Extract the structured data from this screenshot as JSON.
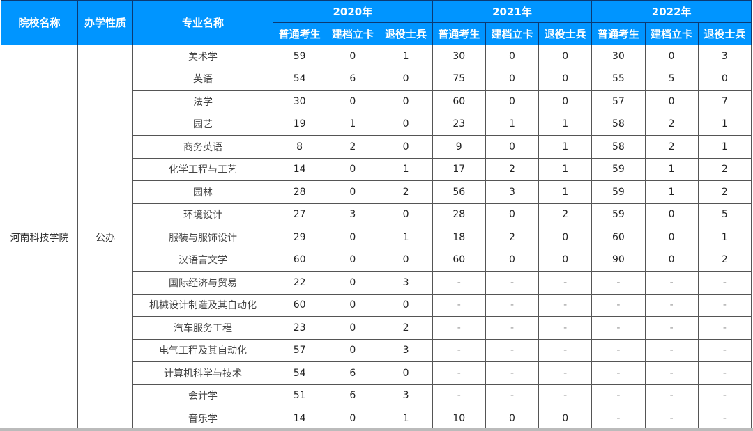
{
  "header": {
    "school": "院校名称",
    "type": "办学性质",
    "major": "专业名称",
    "years": [
      "2020年",
      "2021年",
      "2022年"
    ],
    "sub": [
      "普通考生",
      "建档立卡",
      "退役士兵"
    ]
  },
  "school": "河南科技学院",
  "type": "公办",
  "rows": [
    {
      "major": "美术学",
      "v": [
        "59",
        "0",
        "1",
        "30",
        "0",
        "0",
        "30",
        "0",
        "3"
      ]
    },
    {
      "major": "英语",
      "v": [
        "54",
        "6",
        "0",
        "75",
        "0",
        "0",
        "55",
        "5",
        "0"
      ]
    },
    {
      "major": "法学",
      "v": [
        "30",
        "0",
        "0",
        "60",
        "0",
        "0",
        "57",
        "0",
        "7"
      ]
    },
    {
      "major": "园艺",
      "v": [
        "19",
        "1",
        "0",
        "23",
        "1",
        "1",
        "58",
        "2",
        "1"
      ]
    },
    {
      "major": "商务英语",
      "v": [
        "8",
        "2",
        "0",
        "9",
        "0",
        "1",
        "58",
        "2",
        "1"
      ]
    },
    {
      "major": "化学工程与工艺",
      "v": [
        "14",
        "0",
        "1",
        "17",
        "2",
        "1",
        "59",
        "1",
        "2"
      ]
    },
    {
      "major": "园林",
      "v": [
        "28",
        "0",
        "2",
        "56",
        "3",
        "1",
        "59",
        "1",
        "2"
      ]
    },
    {
      "major": "环境设计",
      "v": [
        "27",
        "3",
        "0",
        "28",
        "0",
        "2",
        "59",
        "0",
        "5"
      ]
    },
    {
      "major": "服装与服饰设计",
      "v": [
        "29",
        "0",
        "1",
        "18",
        "2",
        "0",
        "60",
        "0",
        "1"
      ]
    },
    {
      "major": "汉语言文学",
      "v": [
        "60",
        "0",
        "0",
        "60",
        "0",
        "0",
        "90",
        "0",
        "2"
      ]
    },
    {
      "major": "国际经济与贸易",
      "v": [
        "22",
        "0",
        "3",
        "-",
        "-",
        "-",
        "-",
        "-",
        "-"
      ]
    },
    {
      "major": "机械设计制造及其自动化",
      "v": [
        "60",
        "0",
        "0",
        "-",
        "-",
        "-",
        "-",
        "-",
        "-"
      ]
    },
    {
      "major": "汽车服务工程",
      "v": [
        "23",
        "0",
        "2",
        "-",
        "-",
        "-",
        "-",
        "-",
        "-"
      ]
    },
    {
      "major": "电气工程及其自动化",
      "v": [
        "57",
        "0",
        "3",
        "-",
        "-",
        "-",
        "-",
        "-",
        "-"
      ]
    },
    {
      "major": "计算机科学与技术",
      "v": [
        "54",
        "6",
        "0",
        "-",
        "-",
        "-",
        "-",
        "-",
        "-"
      ]
    },
    {
      "major": "会计学",
      "v": [
        "51",
        "6",
        "3",
        "-",
        "-",
        "-",
        "-",
        "-",
        "-"
      ]
    },
    {
      "major": "音乐学",
      "v": [
        "14",
        "0",
        "1",
        "10",
        "0",
        "0",
        "-",
        "-",
        "-"
      ]
    }
  ],
  "colors": {
    "header_bg": "#0095ff"
  }
}
